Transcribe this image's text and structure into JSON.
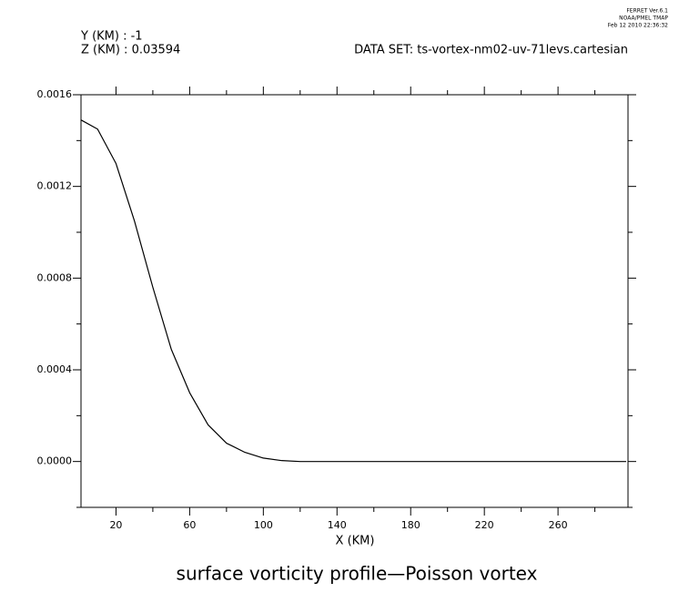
{
  "chart_data": {
    "type": "line",
    "title": "surface vorticity profile—Poisson vortex",
    "x_label": "X (KM)",
    "header_left": [
      "Y (KM) : -1",
      "Z (KM) : 0.03594"
    ],
    "dataset": "DATA SET: ts-vortex-nm02-uv-71levs.cartesian",
    "stamp": [
      "FERRET Ver.6.1",
      "NOAA/PMEL TMAP",
      "Feb 12 2010 22:36:32"
    ],
    "x": [
      1,
      10,
      20,
      30,
      40,
      50,
      60,
      70,
      80,
      90,
      100,
      110,
      120,
      150,
      200,
      250,
      297
    ],
    "series": [
      {
        "color": "#000000",
        "values": [
          0.00149,
          0.00145,
          0.0013,
          0.00105,
          0.00076,
          0.00049,
          0.0003,
          0.00016,
          8e-05,
          4e-05,
          1.5e-05,
          4e-06,
          0,
          0,
          0,
          0,
          0
        ]
      }
    ],
    "xlim": [
      1,
      298
    ],
    "ylim": [
      -0.0002,
      0.0016
    ],
    "xticks": [
      20,
      60,
      100,
      140,
      180,
      220,
      260
    ],
    "xminorticks": [
      40,
      80,
      120,
      160,
      200,
      240,
      280
    ],
    "yticks": [
      {
        "value": 0,
        "label": "0.0000"
      },
      0.0004,
      0.0008,
      0.0012,
      0.0016
    ],
    "yminorticks": [
      -0.0002,
      0.0002,
      0.0006,
      0.001,
      0.0014
    ]
  }
}
